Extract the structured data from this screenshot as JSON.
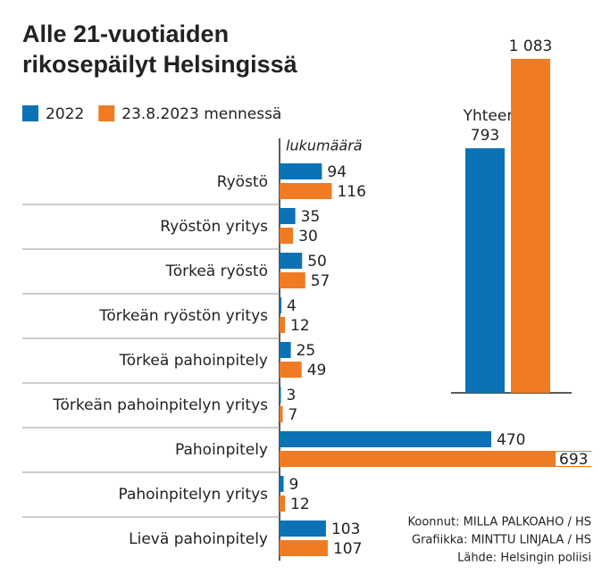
{
  "chart_data": [
    {
      "type": "hbar",
      "title": [
        "Alle 21-vuotiaiden",
        "rikosepäilyt Helsingissä"
      ],
      "x_label": "lukumäärä",
      "categories": [
        "Ryöstö",
        "Ryöstön yritys",
        "Törkeä ryöstö",
        "Törkeän ryöstön yritys",
        "Törkeä pahoinpitely",
        "Törkeän pahoinpitelyn yritys",
        "Pahoinpitely",
        "Pahoinpitelyn yritys",
        "Lievä pahoinpitely"
      ],
      "series": [
        {
          "name": "2022",
          "color": "#0b72b5",
          "values": [
            94,
            35,
            50,
            4,
            25,
            3,
            470,
            9,
            103
          ]
        },
        {
          "name": "23.8.2023 mennessä",
          "color": "#f07b22",
          "values": [
            116,
            30,
            57,
            12,
            49,
            7,
            693,
            12,
            107
          ]
        }
      ],
      "xlim": [
        0,
        700
      ],
      "notes": [
        "Koonnut: MILLA PALKOAHO / HS",
        "Grafiikka: MINTTU LINJALA / HS",
        "Lähde: Helsingin poliisi"
      ]
    },
    {
      "type": "vbar",
      "title": "Yhteensä",
      "values": [
        793,
        1083
      ],
      "value_labels": [
        "793",
        "1 083"
      ],
      "colors": [
        "#0b72b5",
        "#f07b22"
      ],
      "ylim": [
        0,
        1100
      ]
    }
  ]
}
